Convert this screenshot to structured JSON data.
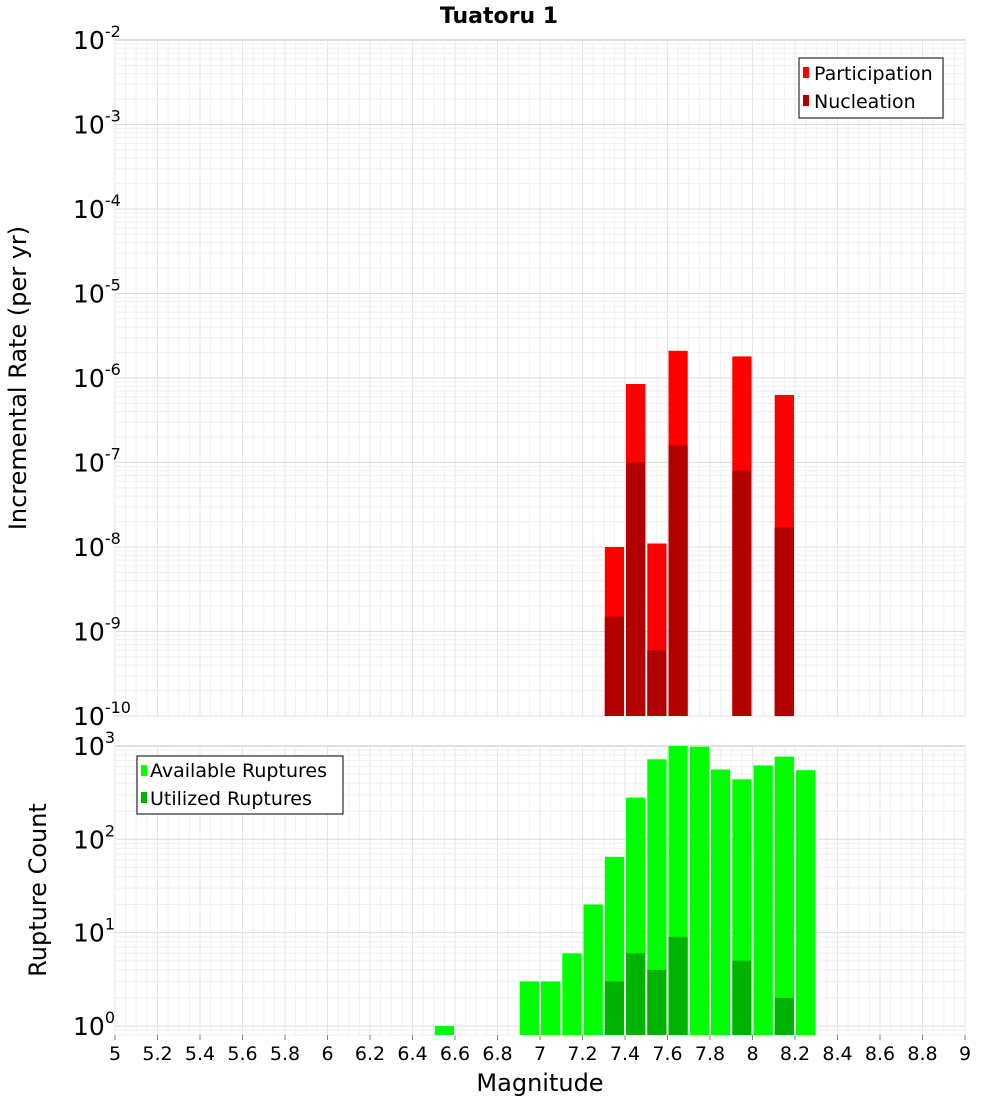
{
  "title": "Tuatoru 1",
  "chart_data": [
    {
      "type": "bar",
      "yscale": "log",
      "ylabel": "Incremental Rate (per yr)",
      "xlabel": "Magnitude",
      "xlim": [
        5,
        9
      ],
      "ylim": [
        1e-10,
        0.01
      ],
      "bar_width": 0.1,
      "ytick_labels": [
        {
          "base": "10",
          "exp": "-2"
        },
        {
          "base": "10",
          "exp": "-3"
        },
        {
          "base": "10",
          "exp": "-4"
        },
        {
          "base": "10",
          "exp": "-5"
        },
        {
          "base": "10",
          "exp": "-6"
        },
        {
          "base": "10",
          "exp": "-7"
        },
        {
          "base": "10",
          "exp": "-8"
        },
        {
          "base": "10",
          "exp": "-9"
        },
        {
          "base": "10",
          "exp": "-10"
        }
      ],
      "legend": {
        "position": "top-right"
      },
      "series": [
        {
          "name": "Participation",
          "color": "#ff0000",
          "x": [
            7.35,
            7.45,
            7.55,
            7.65,
            7.95,
            8.15
          ],
          "values": [
            1e-08,
            8.5e-07,
            1.1e-08,
            2.1e-06,
            1.8e-06,
            6.3e-07
          ]
        },
        {
          "name": "Nucleation",
          "color": "#b20000",
          "x": [
            7.35,
            7.45,
            7.55,
            7.65,
            7.95,
            8.15
          ],
          "values": [
            1.5e-09,
            1e-07,
            6e-10,
            1.6e-07,
            8e-08,
            1.7e-08
          ]
        }
      ]
    },
    {
      "type": "bar",
      "yscale": "log",
      "ylabel": "Rupture Count",
      "xlabel": "Magnitude",
      "xlim": [
        5,
        9
      ],
      "ylim": [
        0.8,
        1000
      ],
      "bar_width": 0.1,
      "ytick_labels": [
        {
          "base": "10",
          "exp": "3"
        },
        {
          "base": "10",
          "exp": "2"
        },
        {
          "base": "10",
          "exp": "1"
        },
        {
          "base": "10",
          "exp": "0"
        }
      ],
      "xtick_labels": [
        "5",
        "5.2",
        "5.4",
        "5.6",
        "5.8",
        "6",
        "6.2",
        "6.4",
        "6.6",
        "6.8",
        "7",
        "7.2",
        "7.4",
        "7.6",
        "7.8",
        "8",
        "8.2",
        "8.4",
        "8.6",
        "8.8",
        "9"
      ],
      "legend": {
        "position": "top-left"
      },
      "series": [
        {
          "name": "Available Ruptures",
          "color": "#00ff00",
          "x": [
            6.55,
            6.95,
            7.05,
            7.15,
            7.25,
            7.35,
            7.45,
            7.55,
            7.65,
            7.75,
            7.85,
            7.95,
            8.05,
            8.15,
            8.25
          ],
          "values": [
            1,
            3,
            3,
            6,
            20,
            65,
            280,
            720,
            1000,
            980,
            560,
            440,
            620,
            770,
            550
          ]
        },
        {
          "name": "Utilized Ruptures",
          "color": "#00b200",
          "x": [
            7.35,
            7.45,
            7.55,
            7.65,
            7.95,
            8.15
          ],
          "values": [
            3,
            6,
            4,
            9,
            5,
            2
          ]
        }
      ]
    }
  ]
}
